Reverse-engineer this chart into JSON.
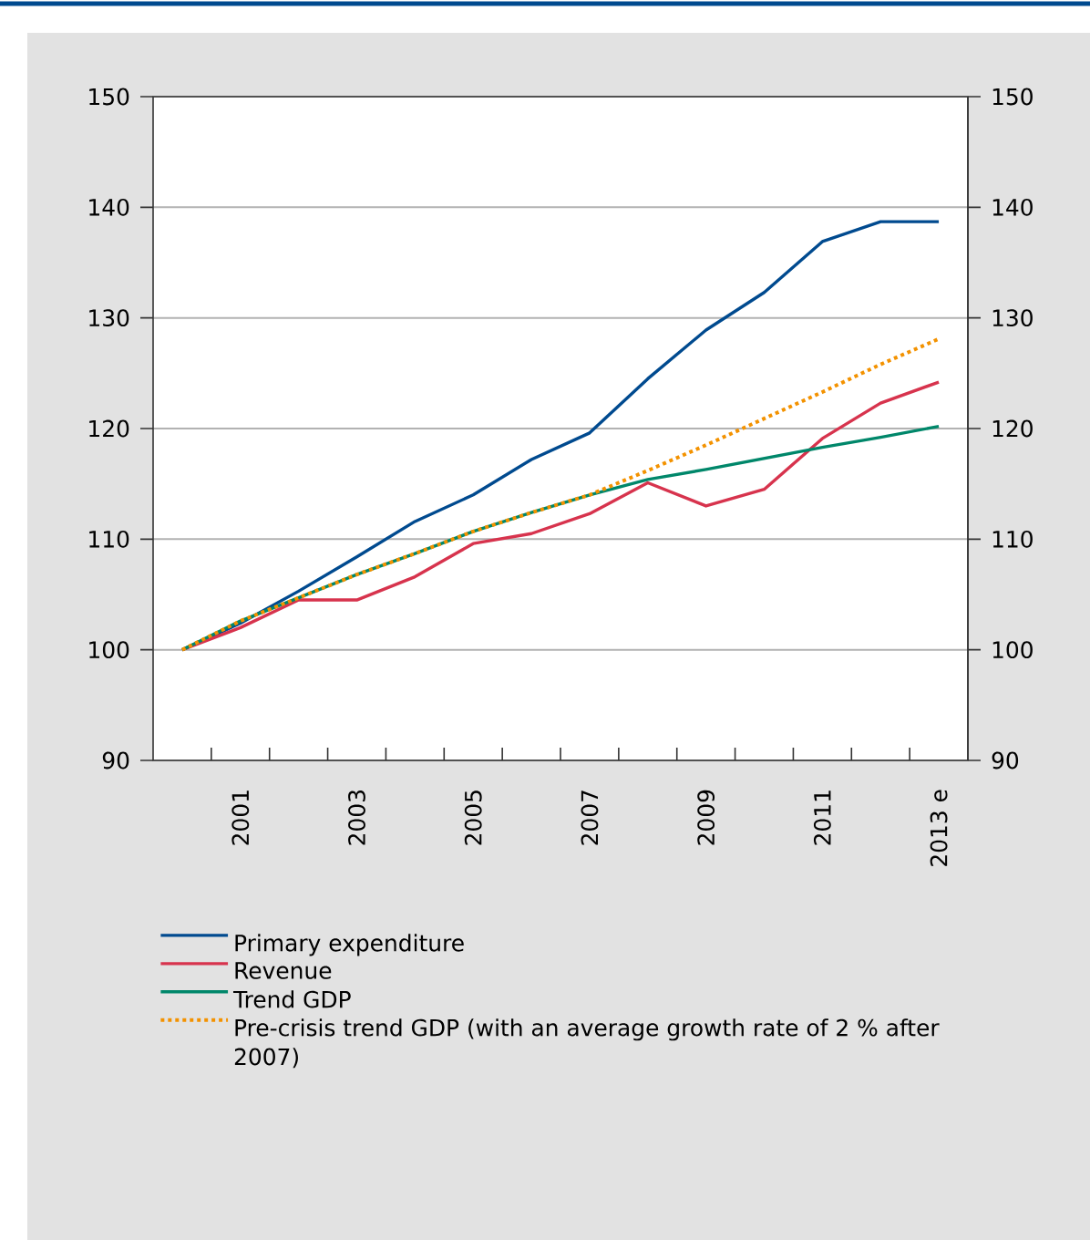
{
  "chart_data": {
    "type": "line",
    "categories": [
      null,
      "2001",
      null,
      "2003",
      null,
      "2005",
      null,
      "2007",
      null,
      "2009",
      null,
      "2011",
      null,
      "2013 e"
    ],
    "series": [
      {
        "name": "Primary expenditure",
        "color": "#004a8f",
        "values": [
          100,
          102.4,
          105.3,
          108.4,
          111.6,
          114.0,
          117.2,
          119.6,
          124.5,
          128.9,
          132.3,
          136.9,
          138.7,
          138.7
        ]
      },
      {
        "name": "Revenue",
        "color": "#d7334d",
        "values": [
          100,
          102.0,
          104.5,
          104.5,
          106.6,
          109.6,
          110.5,
          112.3,
          115.1,
          113.0,
          114.5,
          119.1,
          122.3,
          124.2
        ]
      },
      {
        "name": "Trend GDP",
        "color": "#00876a",
        "values": [
          100,
          102.6,
          104.7,
          106.8,
          108.7,
          110.7,
          112.4,
          114.0,
          115.4,
          116.3,
          117.3,
          118.3,
          119.2,
          120.2
        ]
      },
      {
        "name": "Pre-crisis trend GDP (with an average growth rate of 2 % after 2007)",
        "color": "#f39200",
        "line_style": "dotted",
        "values": [
          100,
          102.6,
          104.7,
          106.8,
          108.7,
          110.7,
          112.4,
          114.0,
          116.2,
          118.5,
          120.9,
          123.3,
          125.8,
          128.1
        ]
      }
    ],
    "ylim": [
      90,
      150
    ],
    "yticks": [
      90,
      100,
      110,
      120,
      130,
      140,
      150
    ],
    "y2lim": [
      90,
      150
    ],
    "y2ticks": [
      90,
      100,
      110,
      120,
      130,
      140,
      150
    ],
    "grid": "y",
    "legend": "bottom",
    "line_style": "solid"
  }
}
